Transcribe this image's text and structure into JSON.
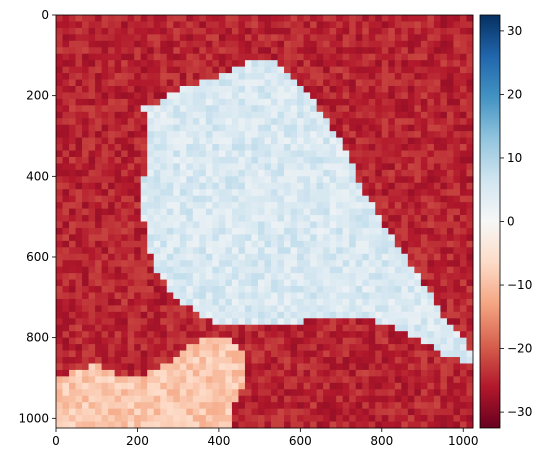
{
  "chart_data": {
    "type": "heatmap",
    "title": "",
    "xlabel": "",
    "ylabel": "",
    "xlim": [
      0,
      1024
    ],
    "ylim": [
      1024,
      0
    ],
    "xticks": [
      0,
      200,
      400,
      600,
      800,
      1000
    ],
    "yticks": [
      0,
      200,
      400,
      600,
      800,
      1000
    ],
    "grid": false,
    "colormap": "RdBu",
    "colorbar": {
      "range": [
        -32.5,
        32.5
      ],
      "ticks": [
        -30,
        -20,
        -10,
        0,
        10,
        20,
        30
      ],
      "tick_labels": [
        "−30",
        "−20",
        "−10",
        "0",
        "10",
        "20",
        "30"
      ]
    },
    "grid_cells": 64,
    "cell_size": 16,
    "background_value": -25,
    "subject_value": 5,
    "branch_value": -9,
    "noise_amplitude": 3,
    "subject_polygon": [
      [
        214,
        220
      ],
      [
        232,
        221
      ],
      [
        250,
        218
      ],
      [
        265,
        208
      ],
      [
        282,
        198
      ],
      [
        300,
        188
      ],
      [
        320,
        178
      ],
      [
        348,
        170
      ],
      [
        370,
        165
      ],
      [
        390,
        158
      ],
      [
        410,
        150
      ],
      [
        430,
        140
      ],
      [
        450,
        130
      ],
      [
        470,
        117
      ],
      [
        490,
        110
      ],
      [
        510,
        108
      ],
      [
        530,
        113
      ],
      [
        545,
        123
      ],
      [
        565,
        140
      ],
      [
        590,
        163
      ],
      [
        620,
        198
      ],
      [
        655,
        243
      ],
      [
        690,
        298
      ],
      [
        720,
        355
      ],
      [
        745,
        413
      ],
      [
        775,
        468
      ],
      [
        805,
        518
      ],
      [
        835,
        563
      ],
      [
        865,
        608
      ],
      [
        895,
        655
      ],
      [
        925,
        703
      ],
      [
        955,
        750
      ],
      [
        985,
        790
      ],
      [
        1010,
        818
      ],
      [
        1024,
        840
      ],
      [
        1024,
        858
      ],
      [
        1000,
        860
      ],
      [
        970,
        850
      ],
      [
        935,
        832
      ],
      [
        900,
        812
      ],
      [
        865,
        793
      ],
      [
        835,
        778
      ],
      [
        805,
        765
      ],
      [
        770,
        755
      ],
      [
        730,
        748
      ],
      [
        690,
        748
      ],
      [
        650,
        750
      ],
      [
        610,
        758
      ],
      [
        575,
        767
      ],
      [
        545,
        773
      ],
      [
        510,
        776
      ],
      [
        480,
        775
      ],
      [
        445,
        773
      ],
      [
        410,
        768
      ],
      [
        378,
        758
      ],
      [
        345,
        740
      ],
      [
        315,
        718
      ],
      [
        285,
        690
      ],
      [
        262,
        660
      ],
      [
        245,
        627
      ],
      [
        232,
        592
      ],
      [
        222,
        555
      ],
      [
        216,
        515
      ],
      [
        214,
        475
      ],
      [
        214,
        435
      ],
      [
        216,
        395
      ],
      [
        222,
        355
      ],
      [
        228,
        320
      ],
      [
        232,
        290
      ],
      [
        230,
        268
      ],
      [
        220,
        250
      ],
      [
        210,
        238
      ],
      [
        204,
        226
      ]
    ],
    "branch_polygon": [
      [
        0,
        1024
      ],
      [
        0,
        900
      ],
      [
        30,
        888
      ],
      [
        60,
        880
      ],
      [
        90,
        868
      ],
      [
        120,
        875
      ],
      [
        150,
        890
      ],
      [
        180,
        898
      ],
      [
        210,
        892
      ],
      [
        245,
        882
      ],
      [
        270,
        865
      ],
      [
        295,
        848
      ],
      [
        315,
        830
      ],
      [
        340,
        815
      ],
      [
        365,
        803
      ],
      [
        392,
        795
      ],
      [
        420,
        800
      ],
      [
        445,
        815
      ],
      [
        460,
        835
      ],
      [
        465,
        865
      ],
      [
        462,
        900
      ],
      [
        455,
        935
      ],
      [
        440,
        965
      ],
      [
        430,
        995
      ],
      [
        425,
        1024
      ]
    ]
  }
}
